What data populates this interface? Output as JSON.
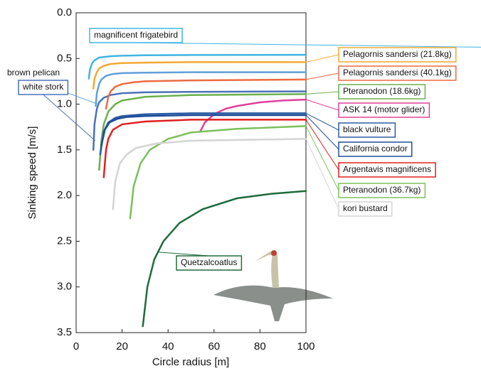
{
  "chart_data": {
    "type": "line",
    "x_label": "Circle radius [m]",
    "y_label": "Sinking speed [m/s]",
    "xlim": [
      0,
      100
    ],
    "xticks": [
      0,
      20,
      40,
      60,
      80,
      100
    ],
    "ylim": [
      0,
      3.5
    ],
    "y_inverted": true,
    "yticks": [
      {
        "value": 0,
        "label": "0.0"
      },
      0.5,
      {
        "value": 1,
        "label": "1.0"
      },
      1.5,
      {
        "value": 2,
        "label": "2.0"
      },
      2.5,
      {
        "value": 3,
        "label": "3.0"
      },
      3.5
    ],
    "series": [
      {
        "name": "magnificent frigatebird",
        "color": "#3fb5e3",
        "x": [
          5.5,
          6,
          7,
          8,
          10,
          15,
          20,
          30,
          50,
          100
        ],
        "values": [
          0.72,
          0.62,
          0.55,
          0.52,
          0.49,
          0.475,
          0.47,
          0.465,
          0.462,
          0.46
        ]
      },
      {
        "name": "brown pelican",
        "color": "#5fa0d8",
        "x": [
          8.5,
          9,
          10,
          11,
          13,
          16,
          20,
          30,
          50,
          100
        ],
        "values": [
          1.02,
          0.88,
          0.78,
          0.73,
          0.69,
          0.67,
          0.66,
          0.655,
          0.65,
          0.65
        ]
      },
      {
        "name": "white stork",
        "color": "#4a72b8",
        "x": [
          7.5,
          8,
          9,
          10,
          12,
          15,
          20,
          30,
          50,
          100
        ],
        "values": [
          1.5,
          1.22,
          1.05,
          0.98,
          0.93,
          0.9,
          0.88,
          0.87,
          0.865,
          0.86
        ]
      },
      {
        "name": "Pelagornis sandersi (21.8kg)",
        "color": "#f3a830",
        "x": [
          7.5,
          8,
          9,
          10,
          12,
          15,
          20,
          30,
          50,
          100
        ],
        "values": [
          0.83,
          0.72,
          0.65,
          0.61,
          0.58,
          0.56,
          0.55,
          0.545,
          0.54,
          0.54
        ]
      },
      {
        "name": "Pelagornis sandersi (40.1kg)",
        "color": "#ec6b40",
        "x": [
          13,
          14,
          15,
          17,
          20,
          25,
          30,
          50,
          100
        ],
        "values": [
          1.05,
          0.92,
          0.86,
          0.81,
          0.78,
          0.76,
          0.75,
          0.74,
          0.73
        ]
      },
      {
        "name": "Pteranodon (18.6kg)",
        "color": "#6ab04c",
        "x": [
          10,
          11,
          12,
          14,
          17,
          20,
          30,
          50,
          100
        ],
        "values": [
          1.72,
          1.4,
          1.22,
          1.08,
          1.0,
          0.96,
          0.92,
          0.9,
          0.89
        ]
      },
      {
        "name": "ASK 14 (motor glider)",
        "color": "#e0409a",
        "x": [
          54,
          56,
          60,
          65,
          70,
          80,
          90,
          100
        ],
        "values": [
          1.3,
          1.2,
          1.11,
          1.05,
          1.02,
          0.98,
          0.96,
          0.95
        ]
      },
      {
        "name": "black vulture",
        "color": "#2c5aa0",
        "x": [
          10.5,
          12,
          14,
          17,
          20,
          30,
          50,
          100
        ],
        "values": [
          1.55,
          1.3,
          1.2,
          1.15,
          1.13,
          1.11,
          1.1,
          1.1
        ]
      },
      {
        "name": "California condor",
        "color": "#1f4e9a",
        "x": [
          11,
          12.5,
          14.5,
          18,
          22,
          30,
          50,
          100
        ],
        "values": [
          1.45,
          1.28,
          1.2,
          1.16,
          1.14,
          1.13,
          1.12,
          1.12
        ]
      },
      {
        "name": "Argentavis magnificens",
        "color": "#e02020",
        "x": [
          12,
          13,
          14,
          16,
          20,
          30,
          50,
          100
        ],
        "values": [
          1.8,
          1.5,
          1.38,
          1.28,
          1.22,
          1.19,
          1.17,
          1.17
        ]
      },
      {
        "name": "Pteranodon (36.7kg)",
        "color": "#7cc05a",
        "x": [
          23.5,
          25,
          28,
          32,
          40,
          50,
          70,
          100
        ],
        "values": [
          2.25,
          1.9,
          1.65,
          1.5,
          1.38,
          1.31,
          1.27,
          1.24
        ]
      },
      {
        "name": "kori bustard",
        "color": "#d4d4d4",
        "x": [
          16,
          17,
          19,
          22,
          26,
          35,
          50,
          100
        ],
        "values": [
          2.15,
          1.85,
          1.65,
          1.55,
          1.48,
          1.43,
          1.4,
          1.38
        ]
      },
      {
        "name": "Quetzalcoatlus",
        "color": "#1e6b3c",
        "x": [
          29,
          31,
          34,
          38,
          45,
          55,
          70,
          85,
          100
        ],
        "values": [
          3.43,
          3.0,
          2.7,
          2.5,
          2.3,
          2.15,
          2.03,
          1.98,
          1.95
        ]
      }
    ]
  }
}
